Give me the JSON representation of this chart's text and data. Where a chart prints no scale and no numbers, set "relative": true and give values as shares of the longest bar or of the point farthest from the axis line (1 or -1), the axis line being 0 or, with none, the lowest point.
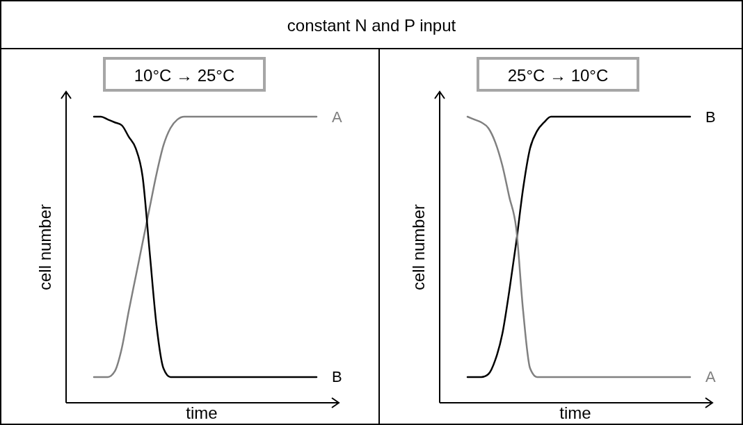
{
  "chart_data": [
    {
      "type": "line",
      "title": "constant N and P input",
      "subtitle": "10°C → 25°C",
      "xlabel": "time",
      "ylabel": "cell number",
      "relative": true,
      "categories": [
        null,
        null,
        null,
        null,
        null,
        null,
        null,
        null,
        null,
        null,
        null,
        null,
        null,
        null,
        null,
        null,
        null,
        null,
        null,
        null,
        null,
        null,
        null,
        null,
        null,
        null,
        null,
        null,
        null,
        null,
        null,
        null,
        null
      ],
      "series": [
        {
          "name": "A",
          "color": "#808080",
          "values": [
            0.09,
            0.09,
            0.09,
            0.11,
            0.19,
            0.32,
            0.44,
            0.56,
            0.68,
            0.8,
            0.9,
            0.96,
            0.99,
            1,
            1,
            1,
            1,
            1,
            1,
            1,
            1,
            1,
            1,
            1,
            1,
            1,
            1,
            1,
            1,
            1,
            1,
            1,
            1
          ]
        },
        {
          "name": "B",
          "color": "#000000",
          "values": [
            1,
            1,
            0.99,
            0.98,
            0.97,
            0.93,
            0.89,
            0.79,
            0.53,
            0.27,
            0.12,
            0.09,
            0.09,
            0.09,
            0.09,
            0.09,
            0.09,
            0.09,
            0.09,
            0.09,
            0.09,
            0.09,
            0.09,
            0.09,
            0.09,
            0.09,
            0.09,
            0.09,
            0.09,
            0.09,
            0.09,
            0.09,
            0.09
          ]
        }
      ]
    },
    {
      "type": "line",
      "subtitle": "25°C → 10°C",
      "xlabel": "time",
      "ylabel": "cell number",
      "relative": true,
      "categories": [
        null,
        null,
        null,
        null,
        null,
        null,
        null,
        null,
        null,
        null,
        null,
        null,
        null,
        null,
        null,
        null,
        null,
        null,
        null,
        null,
        null,
        null,
        null,
        null,
        null,
        null,
        null,
        null,
        null,
        null,
        null,
        null,
        null
      ],
      "series": [
        {
          "name": "B",
          "color": "#000000",
          "values": [
            0.09,
            0.09,
            0.09,
            0.1,
            0.15,
            0.24,
            0.39,
            0.56,
            0.75,
            0.89,
            0.95,
            0.98,
            1,
            1,
            1,
            1,
            1,
            1,
            1,
            1,
            1,
            1,
            1,
            1,
            1,
            1,
            1,
            1,
            1,
            1,
            1,
            1,
            1
          ]
        },
        {
          "name": "A",
          "color": "#808080",
          "values": [
            1,
            0.99,
            0.98,
            0.96,
            0.91,
            0.83,
            0.72,
            0.61,
            0.32,
            0.12,
            0.09,
            0.09,
            0.09,
            0.09,
            0.09,
            0.09,
            0.09,
            0.09,
            0.09,
            0.09,
            0.09,
            0.09,
            0.09,
            0.09,
            0.09,
            0.09,
            0.09,
            0.09,
            0.09,
            0.09,
            0.09,
            0.09,
            0.09
          ]
        }
      ]
    }
  ]
}
